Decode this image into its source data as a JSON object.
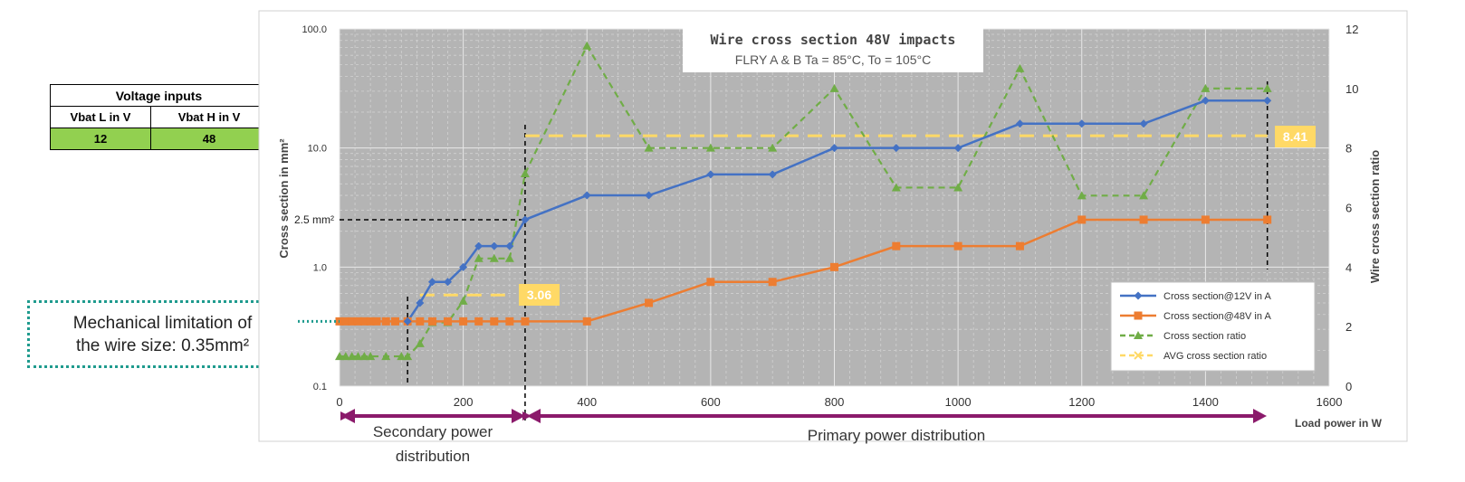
{
  "voltage_table": {
    "title": "Voltage inputs",
    "headers": [
      "Vbat L in V",
      "Vbat H in V"
    ],
    "values": [
      "12",
      "48"
    ],
    "colors": {
      "value_bg": "#92d050"
    }
  },
  "callouts": {
    "mechanical": "Mechanical limitation of the wire size: 0.35mm²",
    "mech_line1": "Mechanical limitation of",
    "mech_line2": "the wire size: 0.35mm²",
    "ref_2_5": "2.5 mm²",
    "avg_secondary": "3.06",
    "avg_primary": "8.41"
  },
  "regions": {
    "secondary_line1": "Secondary power",
    "secondary_line2": "distribution",
    "primary": "Primary power distribution"
  },
  "chart_data": {
    "type": "line",
    "title": "Wire cross section 48V impacts",
    "subtitle": "FLRY A & B Ta = 85°C, To = 105°C",
    "xlabel": "Load power in W",
    "ylabel": "Cross section in mm²",
    "y2label": "Wire cross section ratio",
    "xlim": [
      0,
      1600
    ],
    "ylim": [
      0.1,
      100
    ],
    "y_scale": "log",
    "y2lim": [
      0,
      12
    ],
    "x_ticks": [
      0,
      200,
      400,
      600,
      800,
      1000,
      1200,
      1400,
      1600
    ],
    "y_ticks": [
      "0.1",
      "1.0",
      "10.0",
      "100.0"
    ],
    "y2_ticks": [
      0,
      2,
      4,
      6,
      8,
      10,
      12
    ],
    "grid": true,
    "legend_position": "bottom-right",
    "series": [
      {
        "name": "Cross section@12V in A",
        "axis": "left",
        "color": "#4472c4",
        "marker": "diamond",
        "points": [
          [
            110,
            0.35
          ],
          [
            130,
            0.5
          ],
          [
            150,
            0.75
          ],
          [
            175,
            0.75
          ],
          [
            200,
            1.0
          ],
          [
            225,
            1.5
          ],
          [
            250,
            1.5
          ],
          [
            275,
            1.5
          ],
          [
            300,
            2.5
          ],
          [
            400,
            4
          ],
          [
            500,
            4
          ],
          [
            600,
            6
          ],
          [
            700,
            6
          ],
          [
            800,
            10
          ],
          [
            900,
            10
          ],
          [
            1000,
            10
          ],
          [
            1100,
            16
          ],
          [
            1200,
            16
          ],
          [
            1300,
            16
          ],
          [
            1400,
            25
          ],
          [
            1500,
            25
          ]
        ]
      },
      {
        "name": "Cross section@48V in A",
        "axis": "left",
        "color": "#ed7d31",
        "marker": "square",
        "points": [
          [
            0,
            0.35
          ],
          [
            10,
            0.35
          ],
          [
            20,
            0.35
          ],
          [
            30,
            0.35
          ],
          [
            40,
            0.35
          ],
          [
            50,
            0.35
          ],
          [
            60,
            0.35
          ],
          [
            75,
            0.35
          ],
          [
            90,
            0.35
          ],
          [
            110,
            0.35
          ],
          [
            130,
            0.35
          ],
          [
            150,
            0.35
          ],
          [
            175,
            0.35
          ],
          [
            200,
            0.35
          ],
          [
            225,
            0.35
          ],
          [
            250,
            0.35
          ],
          [
            275,
            0.35
          ],
          [
            300,
            0.35
          ],
          [
            400,
            0.35
          ],
          [
            500,
            0.5
          ],
          [
            600,
            0.75
          ],
          [
            700,
            0.75
          ],
          [
            800,
            1.0
          ],
          [
            900,
            1.5
          ],
          [
            1000,
            1.5
          ],
          [
            1100,
            1.5
          ],
          [
            1200,
            2.5
          ],
          [
            1300,
            2.5
          ],
          [
            1400,
            2.5
          ],
          [
            1500,
            2.5
          ]
        ]
      },
      {
        "name": "Cross section ratio",
        "axis": "right",
        "color": "#70ad47",
        "marker": "triangle",
        "dashed": true,
        "points": [
          [
            0,
            1
          ],
          [
            10,
            1
          ],
          [
            20,
            1
          ],
          [
            30,
            1
          ],
          [
            40,
            1
          ],
          [
            50,
            1
          ],
          [
            75,
            1
          ],
          [
            100,
            1
          ],
          [
            110,
            1
          ],
          [
            130,
            1.43
          ],
          [
            150,
            2.14
          ],
          [
            175,
            2.14
          ],
          [
            200,
            2.86
          ],
          [
            225,
            4.29
          ],
          [
            250,
            4.29
          ],
          [
            275,
            4.29
          ],
          [
            300,
            7.14
          ],
          [
            400,
            11.43
          ],
          [
            500,
            8
          ],
          [
            600,
            8
          ],
          [
            700,
            8
          ],
          [
            800,
            10
          ],
          [
            900,
            6.67
          ],
          [
            1000,
            6.67
          ],
          [
            1100,
            10.67
          ],
          [
            1200,
            6.4
          ],
          [
            1300,
            6.4
          ],
          [
            1400,
            10
          ],
          [
            1500,
            10
          ]
        ]
      },
      {
        "name": "AVG cross section ratio",
        "axis": "right",
        "color": "#ffd966",
        "marker": "x",
        "dashed": true,
        "segments": [
          {
            "x": [
              130,
              275
            ],
            "value": 3.06
          },
          {
            "x": [
              300,
              1500
            ],
            "value": 8.41
          }
        ]
      }
    ]
  }
}
